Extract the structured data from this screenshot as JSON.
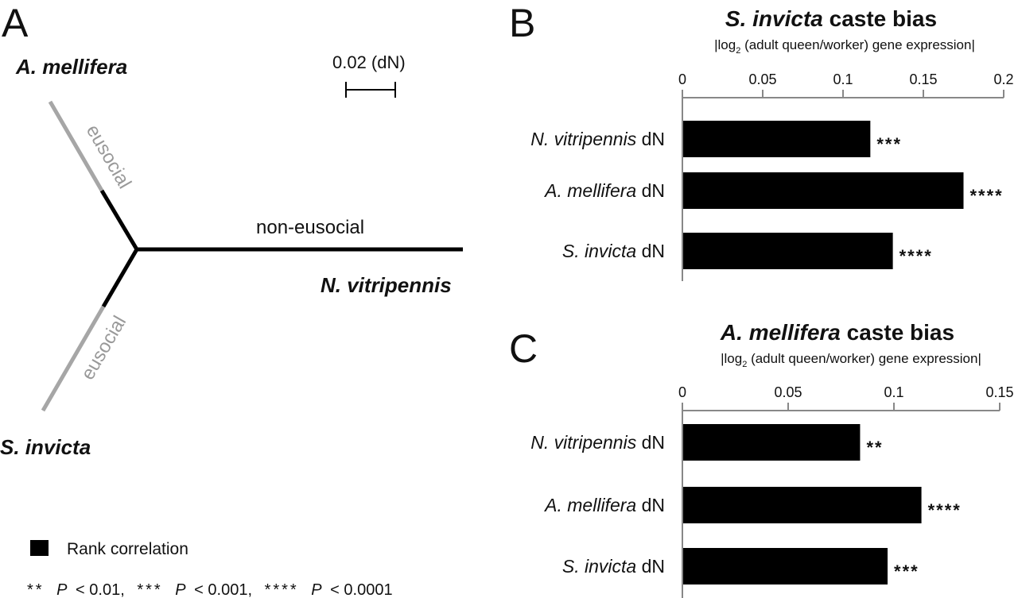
{
  "panel_a": {
    "letter": "A",
    "scale_label": "0.02 (dN)",
    "taxa": {
      "apis": "A. mellifera",
      "solenopsis": "S. invicta",
      "nasonia": "N. vitripennis"
    },
    "branch_labels": {
      "upper": "eusocial",
      "lower": "eusocial",
      "right": "non-eusocial"
    },
    "colors": {
      "eusocial_branch": "#a6a6a6",
      "tree": "#000000"
    }
  },
  "legend": {
    "swatch_label": "Rank correlation",
    "sig_note": {
      "s2": "**",
      "p2": "< 0.01,",
      "s3": "***",
      "p3": "< 0.001,",
      "s4": "****",
      "p4": "< 0.0001",
      "P": "P"
    }
  },
  "chart_data": [
    {
      "panel": "B",
      "type": "bar",
      "orientation": "horizontal",
      "title_italic": "S. invicta",
      "title_rest": " caste bias",
      "subtitle_pre": "|log",
      "subtitle_sub": "2",
      "subtitle_post": " (adult queen/worker) gene expression|",
      "xlim": [
        0,
        0.2
      ],
      "ticks": [
        0,
        0.05,
        0.1,
        0.15,
        0.2
      ],
      "tick_labels": [
        "0",
        "0.05",
        "0.1",
        "0.15",
        "0.2"
      ],
      "axis_position": "top",
      "categories": [
        {
          "italic": "N. vitripennis",
          "suffix": " dN"
        },
        {
          "italic": "A. mellifera",
          "suffix": " dN"
        },
        {
          "italic": "S. invicta",
          "suffix": " dN"
        }
      ],
      "values": [
        0.117,
        0.175,
        0.131
      ],
      "significance": [
        "***",
        "****",
        "****"
      ],
      "series": [
        {
          "name": "Rank correlation",
          "color": "#000000"
        }
      ]
    },
    {
      "panel": "C",
      "type": "bar",
      "orientation": "horizontal",
      "title_italic": "A. mellifera",
      "title_rest": " caste bias",
      "subtitle_pre": "|log",
      "subtitle_sub": "2",
      "subtitle_post": " (adult queen/worker) gene expression|",
      "xlim": [
        0,
        0.15
      ],
      "ticks": [
        0,
        0.05,
        0.1,
        0.15
      ],
      "tick_labels": [
        "0",
        "0.05",
        "0.1",
        "0.15"
      ],
      "axis_position": "top",
      "categories": [
        {
          "italic": "N. vitripennis",
          "suffix": " dN"
        },
        {
          "italic": "A. mellifera",
          "suffix": " dN"
        },
        {
          "italic": "S. invicta",
          "suffix": " dN"
        }
      ],
      "values": [
        0.084,
        0.113,
        0.097
      ],
      "significance": [
        "**",
        "****",
        "***"
      ],
      "series": [
        {
          "name": "Rank correlation",
          "color": "#000000"
        }
      ]
    }
  ]
}
